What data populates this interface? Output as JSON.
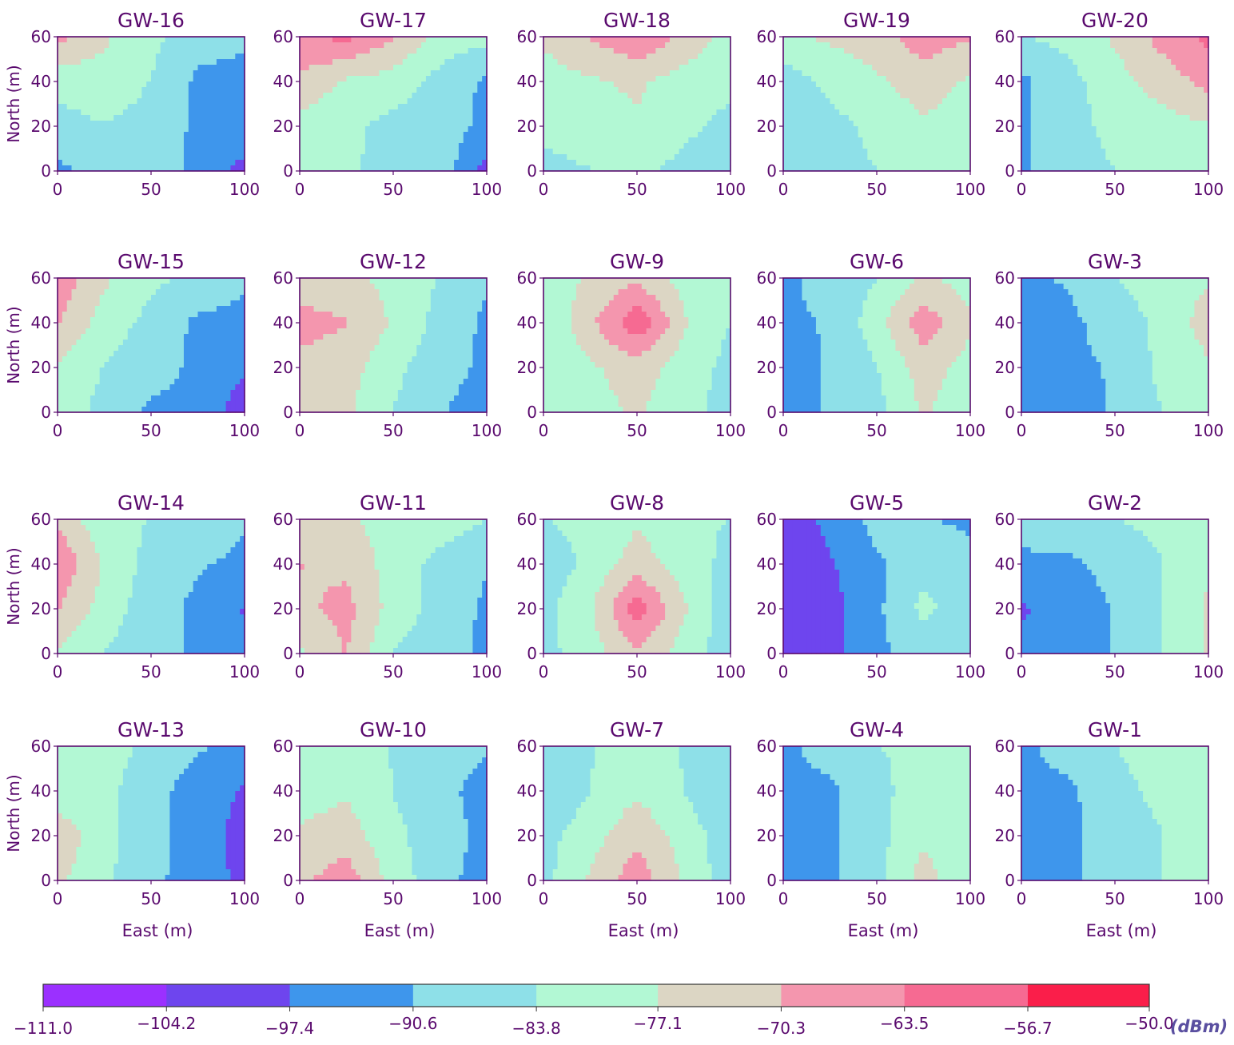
{
  "chart_data": {
    "type": "heatmap",
    "description": "Contour maps of received signal strength for 20 gateways over a 100 m x 60 m area",
    "xlabel": "East (m)",
    "ylabel": "North (m)",
    "xlim": [
      0,
      100
    ],
    "ylim": [
      0,
      60
    ],
    "xticks": [
      "0",
      "50",
      "100"
    ],
    "yticks": [
      "0",
      "20",
      "40",
      "60"
    ],
    "levels": [
      -111.0,
      -104.2,
      -97.4,
      -90.6,
      -83.8,
      -77.1,
      -70.3,
      -63.5,
      -56.7,
      -50.0
    ],
    "level_labels": [
      "−111.0",
      "−104.2",
      "−97.4",
      "−90.6",
      "−83.8",
      "−77.1",
      "−70.3",
      "−63.5",
      "−56.7",
      "−50.0"
    ],
    "colormap": [
      "#9b30ff",
      "#6e45ee",
      "#3e96ec",
      "#8ee0e8",
      "#b2f8d4",
      "#dcd6c4",
      "#f496ae",
      "#f66a92",
      "#fa1e4a"
    ],
    "colorbar_unit": "(dBm)",
    "grid_x": [
      0,
      25,
      50,
      75,
      100
    ],
    "grid_y": [
      0,
      20,
      40,
      60
    ],
    "grid_note": "values[row][col] in dBm; rows are North 60,40,20,0 (top to bottom), columns are East 0,25,50,75,100",
    "panels": [
      {
        "name": "GW-16",
        "values": [
          [
            -68,
            -76,
            -82,
            -88,
            -90
          ],
          [
            -82,
            -80,
            -84,
            -92,
            -92
          ],
          [
            -86,
            -84,
            -86,
            -92,
            -92
          ],
          [
            -92,
            -88,
            -86,
            -93,
            -100
          ]
        ]
      },
      {
        "name": "GW-17",
        "values": [
          [
            -64,
            -62,
            -70,
            -80,
            -82
          ],
          [
            -72,
            -78,
            -80,
            -86,
            -92
          ],
          [
            -80,
            -82,
            -86,
            -88,
            -92
          ],
          [
            -82,
            -82,
            -88,
            -86,
            -100
          ]
        ]
      },
      {
        "name": "GW-18",
        "values": [
          [
            -76,
            -70,
            -64,
            -72,
            -80
          ],
          [
            -80,
            -78,
            -76,
            -80,
            -82
          ],
          [
            -82,
            -80,
            -78,
            -82,
            -86
          ],
          [
            -86,
            -84,
            -82,
            -86,
            -90
          ]
        ]
      },
      {
        "name": "GW-19",
        "values": [
          [
            -78,
            -76,
            -74,
            -66,
            -70
          ],
          [
            -88,
            -82,
            -78,
            -74,
            -78
          ],
          [
            -90,
            -86,
            -82,
            -78,
            -80
          ],
          [
            -86,
            -86,
            -84,
            -80,
            -80
          ]
        ]
      },
      {
        "name": "GW-20",
        "values": [
          [
            -84,
            -82,
            -76,
            -68,
            -62
          ],
          [
            -92,
            -86,
            -80,
            -74,
            -68
          ],
          [
            -92,
            -86,
            -82,
            -80,
            -78
          ],
          [
            -92,
            -86,
            -84,
            -82,
            -82
          ]
        ]
      },
      {
        "name": "GW-15",
        "values": [
          [
            -66,
            -76,
            -82,
            -86,
            -90
          ],
          [
            -70,
            -80,
            -86,
            -92,
            -92
          ],
          [
            -78,
            -84,
            -88,
            -92,
            -96
          ],
          [
            -80,
            -86,
            -92,
            -92,
            -102
          ]
        ]
      },
      {
        "name": "GW-12",
        "values": [
          [
            -74,
            -74,
            -80,
            -84,
            -90
          ],
          [
            -68,
            -70,
            -78,
            -86,
            -92
          ],
          [
            -72,
            -74,
            -82,
            -88,
            -92
          ],
          [
            -74,
            -76,
            -84,
            -90,
            -94
          ]
        ]
      },
      {
        "name": "GW-9",
        "values": [
          [
            -82,
            -76,
            -72,
            -80,
            -84
          ],
          [
            -84,
            -72,
            -58,
            -76,
            -84
          ],
          [
            -84,
            -78,
            -74,
            -80,
            -86
          ],
          [
            -84,
            -80,
            -76,
            -82,
            -86
          ]
        ]
      },
      {
        "name": "GW-6",
        "values": [
          [
            -92,
            -88,
            -84,
            -76,
            -80
          ],
          [
            -92,
            -90,
            -80,
            -66,
            -76
          ],
          [
            -94,
            -90,
            -84,
            -74,
            -80
          ],
          [
            -94,
            -90,
            -86,
            -76,
            -82
          ]
        ]
      },
      {
        "name": "GW-3",
        "values": [
          [
            -92,
            -90,
            -84,
            -80,
            -78
          ],
          [
            -92,
            -92,
            -88,
            -82,
            -74
          ],
          [
            -96,
            -92,
            -90,
            -82,
            -78
          ],
          [
            -92,
            -94,
            -90,
            -84,
            -78
          ]
        ]
      },
      {
        "name": "GW-14",
        "values": [
          [
            -72,
            -82,
            -84,
            -86,
            -90
          ],
          [
            -64,
            -78,
            -86,
            -90,
            -92
          ],
          [
            -70,
            -80,
            -88,
            -92,
            -98
          ],
          [
            -78,
            -84,
            -88,
            -92,
            -96
          ]
        ]
      },
      {
        "name": "GW-11",
        "values": [
          [
            -76,
            -76,
            -80,
            -80,
            -84
          ],
          [
            -70,
            -72,
            -80,
            -86,
            -90
          ],
          [
            -72,
            -68,
            -80,
            -86,
            -92
          ],
          [
            -78,
            -70,
            -84,
            -88,
            -92
          ]
        ]
      },
      {
        "name": "GW-8",
        "values": [
          [
            -84,
            -82,
            -78,
            -82,
            -84
          ],
          [
            -88,
            -82,
            -74,
            -80,
            -86
          ],
          [
            -86,
            -78,
            -60,
            -76,
            -88
          ],
          [
            -86,
            -80,
            -72,
            -80,
            -88
          ]
        ]
      },
      {
        "name": "GW-5",
        "values": [
          [
            -100,
            -96,
            -88,
            -90,
            -92
          ],
          [
            -104,
            -98,
            -92,
            -86,
            -88
          ],
          [
            -104,
            -100,
            -92,
            -82,
            -88
          ],
          [
            -104,
            -100,
            -92,
            -88,
            -90
          ]
        ]
      },
      {
        "name": "GW-2",
        "values": [
          [
            -88,
            -86,
            -84,
            -82,
            -80
          ],
          [
            -92,
            -92,
            -88,
            -84,
            -78
          ],
          [
            -98,
            -96,
            -90,
            -84,
            -76
          ],
          [
            -96,
            -94,
            -90,
            -84,
            -76
          ]
        ]
      },
      {
        "name": "GW-13",
        "values": [
          [
            -78,
            -80,
            -86,
            -90,
            -92
          ],
          [
            -82,
            -82,
            -88,
            -94,
            -98
          ],
          [
            -72,
            -82,
            -88,
            -94,
            -100
          ],
          [
            -76,
            -82,
            -90,
            -92,
            -100
          ]
        ]
      },
      {
        "name": "GW-10",
        "values": [
          [
            -82,
            -82,
            -84,
            -86,
            -90
          ],
          [
            -80,
            -78,
            -84,
            -88,
            -94
          ],
          [
            -76,
            -74,
            -82,
            -88,
            -92
          ],
          [
            -72,
            -66,
            -80,
            -88,
            -94
          ]
        ]
      },
      {
        "name": "GW-7",
        "values": [
          [
            -86,
            -84,
            -82,
            -84,
            -86
          ],
          [
            -90,
            -84,
            -78,
            -84,
            -90
          ],
          [
            -86,
            -80,
            -72,
            -80,
            -88
          ],
          [
            -86,
            -76,
            -66,
            -78,
            -88
          ]
        ]
      },
      {
        "name": "GW-4",
        "values": [
          [
            -92,
            -88,
            -84,
            -82,
            -82
          ],
          [
            -92,
            -92,
            -86,
            -80,
            -84
          ],
          [
            -94,
            -92,
            -86,
            -78,
            -84
          ],
          [
            -94,
            -92,
            -86,
            -74,
            -84
          ]
        ]
      },
      {
        "name": "GW-1",
        "values": [
          [
            -92,
            -88,
            -84,
            -80,
            -80
          ],
          [
            -92,
            -92,
            -86,
            -82,
            -80
          ],
          [
            -94,
            -92,
            -88,
            -84,
            -78
          ],
          [
            -94,
            -92,
            -88,
            -84,
            -80
          ]
        ]
      }
    ]
  }
}
